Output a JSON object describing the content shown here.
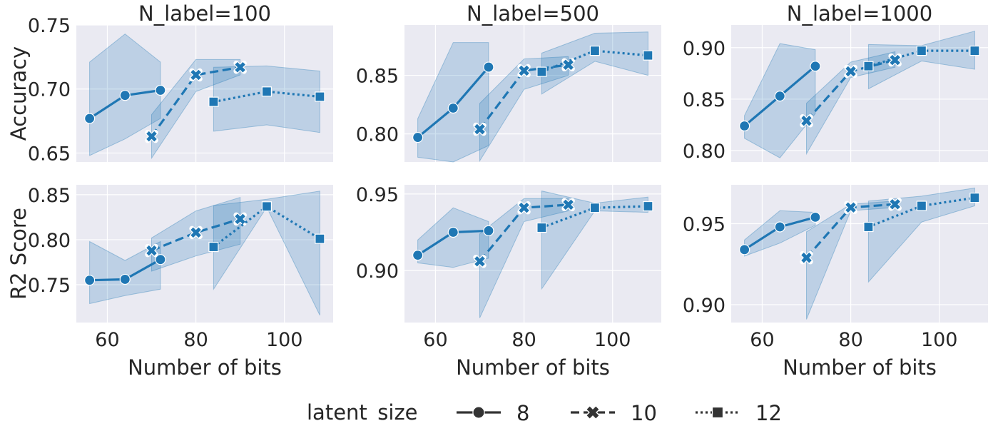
{
  "figure": {
    "legend_title": "latent_size",
    "legend_position": "bottom-center"
  },
  "colors": {
    "line": "#1f77b4",
    "band": "#1f77b4",
    "panel_bg": "#eaeaf2",
    "grid": "#ffffff",
    "text": "#262626"
  },
  "chart_data": [
    {
      "type": "line",
      "title": "N_label=100",
      "ylabel": "Accuracy",
      "xlabel": "",
      "row": 0,
      "col": 0,
      "xlim": [
        53,
        111
      ],
      "ylim": [
        0.643,
        0.75
      ],
      "xticks": [
        60,
        80,
        100
      ],
      "yticks": [
        0.65,
        0.7,
        0.75
      ],
      "ytick_labels": [
        "0.65",
        "0.70",
        "0.75"
      ],
      "grid": true,
      "series": [
        {
          "name": "8",
          "x": [
            56,
            64,
            72
          ],
          "y": [
            0.677,
            0.695,
            0.699
          ],
          "lower": [
            0.648,
            0.661,
            0.677
          ],
          "upper": [
            0.721,
            0.743,
            0.721
          ]
        },
        {
          "name": "10",
          "x": [
            70,
            80,
            90
          ],
          "y": [
            0.663,
            0.711,
            0.717
          ],
          "lower": [
            0.646,
            0.698,
            0.711
          ],
          "upper": [
            0.68,
            0.723,
            0.723
          ]
        },
        {
          "name": "12",
          "x": [
            84,
            96,
            108
          ],
          "y": [
            0.69,
            0.698,
            0.694
          ],
          "lower": [
            0.667,
            0.672,
            0.666
          ],
          "upper": [
            0.717,
            0.718,
            0.714
          ]
        }
      ]
    },
    {
      "type": "line",
      "title": "N_label=500",
      "ylabel": "",
      "xlabel": "",
      "row": 0,
      "col": 1,
      "xlim": [
        53,
        111
      ],
      "ylim": [
        0.776,
        0.893
      ],
      "xticks": [
        60,
        80,
        100
      ],
      "yticks": [
        0.8,
        0.85
      ],
      "ytick_labels": [
        "0.80",
        "0.85"
      ],
      "grid": true,
      "series": [
        {
          "name": "8",
          "x": [
            56,
            64,
            72
          ],
          "y": [
            0.797,
            0.822,
            0.857
          ],
          "lower": [
            0.78,
            0.776,
            0.79
          ],
          "upper": [
            0.813,
            0.878,
            0.878
          ]
        },
        {
          "name": "10",
          "x": [
            70,
            80,
            90
          ],
          "y": [
            0.804,
            0.854,
            0.859
          ],
          "lower": [
            0.777,
            0.838,
            0.85
          ],
          "upper": [
            0.826,
            0.864,
            0.866
          ]
        },
        {
          "name": "12",
          "x": [
            84,
            96,
            108
          ],
          "y": [
            0.853,
            0.871,
            0.867
          ],
          "lower": [
            0.834,
            0.862,
            0.85
          ],
          "upper": [
            0.869,
            0.886,
            0.887
          ]
        }
      ]
    },
    {
      "type": "line",
      "title": "N_label=1000",
      "ylabel": "",
      "xlabel": "",
      "row": 0,
      "col": 2,
      "xlim": [
        53,
        111
      ],
      "ylim": [
        0.789,
        0.922
      ],
      "xticks": [
        60,
        80,
        100
      ],
      "yticks": [
        0.8,
        0.85,
        0.9
      ],
      "ytick_labels": [
        "0.80",
        "0.85",
        "0.90"
      ],
      "grid": true,
      "series": [
        {
          "name": "8",
          "x": [
            56,
            64,
            72
          ],
          "y": [
            0.824,
            0.853,
            0.882
          ],
          "lower": [
            0.812,
            0.793,
            0.836
          ],
          "upper": [
            0.834,
            0.904,
            0.898
          ]
        },
        {
          "name": "10",
          "x": [
            70,
            80,
            90
          ],
          "y": [
            0.829,
            0.877,
            0.888
          ],
          "lower": [
            0.797,
            0.871,
            0.881
          ],
          "upper": [
            0.846,
            0.886,
            0.896
          ]
        },
        {
          "name": "12",
          "x": [
            84,
            96,
            108
          ],
          "y": [
            0.882,
            0.897,
            0.897
          ],
          "lower": [
            0.86,
            0.887,
            0.879
          ],
          "upper": [
            0.903,
            0.902,
            0.916
          ]
        }
      ]
    },
    {
      "type": "line",
      "title": "",
      "ylabel": "R2 Score",
      "xlabel": "Number of bits",
      "row": 1,
      "col": 0,
      "xlim": [
        53,
        111
      ],
      "ylim": [
        0.708,
        0.861
      ],
      "xticks": [
        60,
        80,
        100
      ],
      "yticks": [
        0.75,
        0.8,
        0.85
      ],
      "ytick_labels": [
        "0.75",
        "0.80",
        "0.85"
      ],
      "grid": true,
      "series": [
        {
          "name": "8",
          "x": [
            56,
            64,
            72
          ],
          "y": [
            0.755,
            0.756,
            0.778
          ],
          "lower": [
            0.729,
            0.738,
            0.745
          ],
          "upper": [
            0.798,
            0.777,
            0.798
          ]
        },
        {
          "name": "10",
          "x": [
            70,
            80,
            90
          ],
          "y": [
            0.788,
            0.808,
            0.823
          ],
          "lower": [
            0.765,
            0.782,
            0.795
          ],
          "upper": [
            0.802,
            0.832,
            0.847
          ]
        },
        {
          "name": "12",
          "x": [
            84,
            96,
            108
          ],
          "y": [
            0.792,
            0.837,
            0.801
          ],
          "lower": [
            0.745,
            0.836,
            0.716
          ],
          "upper": [
            0.838,
            0.845,
            0.854
          ]
        }
      ]
    },
    {
      "type": "line",
      "title": "",
      "ylabel": "",
      "xlabel": "Number of bits",
      "row": 1,
      "col": 1,
      "xlim": [
        53,
        111
      ],
      "ylim": [
        0.866,
        0.956
      ],
      "xticks": [
        60,
        80,
        100
      ],
      "yticks": [
        0.9,
        0.95
      ],
      "ytick_labels": [
        "0.90",
        "0.95"
      ],
      "grid": true,
      "series": [
        {
          "name": "8",
          "x": [
            56,
            64,
            72
          ],
          "y": [
            0.91,
            0.925,
            0.926
          ],
          "lower": [
            0.905,
            0.902,
            0.908
          ],
          "upper": [
            0.92,
            0.941,
            0.932
          ]
        },
        {
          "name": "10",
          "x": [
            70,
            80,
            90
          ],
          "y": [
            0.906,
            0.941,
            0.943
          ],
          "lower": [
            0.869,
            0.932,
            0.939
          ],
          "upper": [
            0.924,
            0.947,
            0.947
          ]
        },
        {
          "name": "12",
          "x": [
            84,
            96,
            108
          ],
          "y": [
            0.928,
            0.941,
            0.942
          ],
          "lower": [
            0.888,
            0.939,
            0.938
          ],
          "upper": [
            0.952,
            0.944,
            0.948
          ]
        }
      ]
    },
    {
      "type": "line",
      "title": "",
      "ylabel": "",
      "xlabel": "Number of bits",
      "row": 1,
      "col": 2,
      "xlim": [
        53,
        111
      ],
      "ylim": [
        0.889,
        0.974
      ],
      "xticks": [
        60,
        80,
        100
      ],
      "yticks": [
        0.9,
        0.95
      ],
      "ytick_labels": [
        "0.90",
        "0.95"
      ],
      "grid": true,
      "series": [
        {
          "name": "8",
          "x": [
            56,
            64,
            72
          ],
          "y": [
            0.934,
            0.948,
            0.954
          ],
          "lower": [
            0.93,
            0.938,
            0.949
          ],
          "upper": [
            0.94,
            0.958,
            0.957
          ]
        },
        {
          "name": "10",
          "x": [
            70,
            80,
            90
          ],
          "y": [
            0.929,
            0.96,
            0.962
          ],
          "lower": [
            0.891,
            0.958,
            0.96
          ],
          "upper": [
            0.945,
            0.962,
            0.964
          ]
        },
        {
          "name": "12",
          "x": [
            84,
            96,
            108
          ],
          "y": [
            0.948,
            0.961,
            0.966
          ],
          "lower": [
            0.914,
            0.951,
            0.961
          ],
          "upper": [
            0.964,
            0.967,
            0.972
          ]
        }
      ]
    }
  ]
}
